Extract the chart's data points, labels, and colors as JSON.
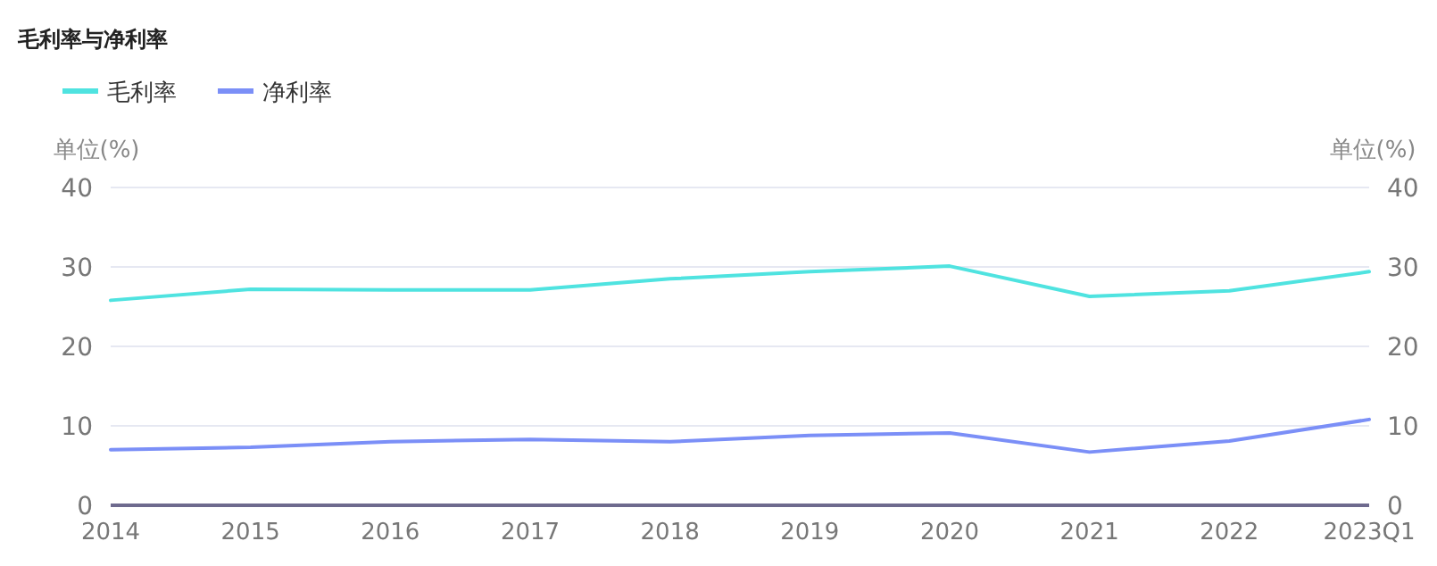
{
  "chart_data": {
    "type": "line",
    "title": "毛利率与净利率",
    "ylabel": "单位(%)",
    "y2label": "单位(%)",
    "categories": [
      "2014",
      "2015",
      "2016",
      "2017",
      "2018",
      "2019",
      "2020",
      "2021",
      "2022",
      "2023Q1"
    ],
    "series": [
      {
        "name": "毛利率",
        "color": "#4fe3e0",
        "values": [
          25.8,
          27.2,
          27.1,
          27.1,
          28.5,
          29.4,
          30.1,
          26.3,
          27.0,
          29.4
        ]
      },
      {
        "name": "净利率",
        "color": "#7b8ff7",
        "values": [
          7.0,
          7.3,
          8.0,
          8.3,
          8.0,
          8.8,
          9.1,
          6.7,
          8.1,
          10.8
        ]
      }
    ],
    "ylim": [
      0,
      40
    ],
    "yticks": [
      0,
      10,
      20,
      30,
      40
    ],
    "y2lim": [
      0,
      40
    ],
    "y2ticks": [
      0,
      10,
      20,
      30,
      40
    ],
    "grid": "y",
    "legend": "top left",
    "marker": "none",
    "line_style": "solid"
  }
}
